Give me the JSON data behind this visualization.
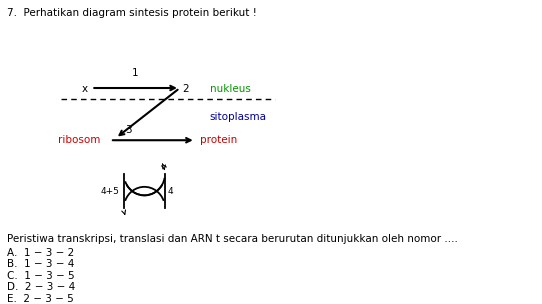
{
  "title_num": "7.",
  "title_text": "Perhatikan diagram sintesis protein berikut !",
  "question": "Peristiwa transkripsi, translasi dan ARN t secara berurutan ditunjukkan oleh nomor ....",
  "options": [
    "A.  1 − 3 − 2",
    "B.  1 − 3 − 4",
    "C.  1 − 3 − 5",
    "D.  2 − 3 − 4",
    "E.  2 − 3 − 5"
  ],
  "label_x": "x",
  "label_1": "1",
  "label_2": "2",
  "label_3": "3",
  "label_4": "4",
  "label_45": "4+5",
  "label_nukleus": "nukleus",
  "label_sitoplasma": "sitoplasma",
  "label_ribosom": "ribosom",
  "label_protein": "protein",
  "color_nukleus": "#009900",
  "color_sitoplasma": "#000099",
  "color_ribosom": "#cc0000",
  "color_protein": "#cc0000",
  "color_black": "#000000",
  "bg_color": "#ffffff"
}
